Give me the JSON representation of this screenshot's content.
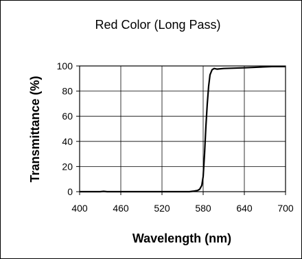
{
  "chart_data": {
    "type": "line",
    "title": "Red Color (Long Pass)",
    "xlabel": "Wavelength (nm)",
    "ylabel": "Transmittance (%)",
    "xlim": [
      400,
      700
    ],
    "ylim": [
      0,
      100
    ],
    "xticks": [
      "400",
      "460",
      "520",
      "580",
      "640",
      "700"
    ],
    "yticks": [
      "0",
      "20",
      "40",
      "60",
      "80",
      "100"
    ],
    "grid": true,
    "series": [
      {
        "x": [
          400,
          430,
          435,
          440,
          500,
          540,
          560,
          567,
          572,
          575,
          578,
          580,
          582,
          584,
          586,
          588,
          590,
          593,
          596,
          600,
          610,
          640,
          660,
          680,
          700
        ],
        "y": [
          0,
          0,
          0.3,
          0,
          0,
          0,
          0,
          0.5,
          1,
          2,
          5,
          12,
          30,
          52,
          70,
          84,
          93,
          97,
          98,
          97.5,
          98,
          98.5,
          99,
          99.5,
          99.5
        ]
      }
    ]
  }
}
